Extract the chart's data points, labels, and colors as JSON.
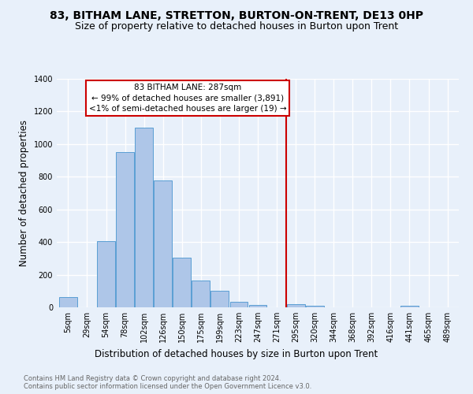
{
  "title": "83, BITHAM LANE, STRETTON, BURTON-ON-TRENT, DE13 0HP",
  "subtitle": "Size of property relative to detached houses in Burton upon Trent",
  "xlabel": "Distribution of detached houses by size in Burton upon Trent",
  "ylabel": "Number of detached properties",
  "footnote1": "Contains HM Land Registry data © Crown copyright and database right 2024.",
  "footnote2": "Contains public sector information licensed under the Open Government Licence v3.0.",
  "bar_labels": [
    "5sqm",
    "29sqm",
    "54sqm",
    "78sqm",
    "102sqm",
    "126sqm",
    "150sqm",
    "175sqm",
    "199sqm",
    "223sqm",
    "247sqm",
    "271sqm",
    "295sqm",
    "320sqm",
    "344sqm",
    "368sqm",
    "392sqm",
    "416sqm",
    "441sqm",
    "465sqm",
    "489sqm"
  ],
  "bar_values": [
    65,
    0,
    405,
    950,
    1100,
    775,
    305,
    165,
    100,
    35,
    15,
    0,
    17,
    10,
    0,
    0,
    0,
    0,
    12,
    0,
    0
  ],
  "bar_color": "#aec6e8",
  "bar_edgecolor": "#5a9fd4",
  "vline_bin_index": 11.5,
  "vline_color": "#cc0000",
  "annotation_title": "83 BITHAM LANE: 287sqm",
  "annotation_line1": "← 99% of detached houses are smaller (3,891)",
  "annotation_line2": "<1% of semi-detached houses are larger (19) →",
  "annotation_box_color": "#cc0000",
  "ylim": [
    0,
    1400
  ],
  "yticks": [
    0,
    200,
    400,
    600,
    800,
    1000,
    1200,
    1400
  ],
  "bg_color": "#e8f0fa",
  "grid_color": "#ffffff",
  "title_fontsize": 10,
  "subtitle_fontsize": 9,
  "axis_label_fontsize": 8.5,
  "tick_fontsize": 7,
  "ylabel_fontsize": 8.5,
  "footnote_fontsize": 6,
  "annotation_fontsize": 7.5
}
